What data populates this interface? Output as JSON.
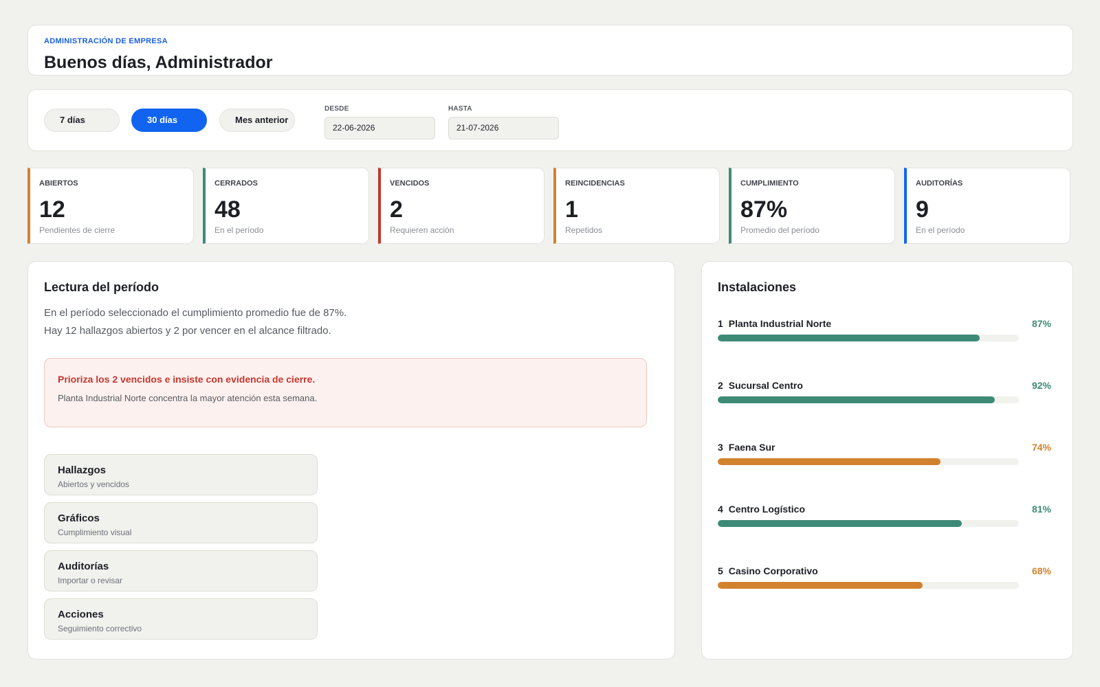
{
  "header": {
    "eyebrow": "ADMINISTRACIÓN DE EMPRESA",
    "title": "Buenos días, Administrador"
  },
  "filters": {
    "ranges": [
      {
        "label": "7 días",
        "active": false
      },
      {
        "label": "30 días",
        "active": true
      },
      {
        "label": "Mes anterior",
        "active": false
      }
    ],
    "from_label": "DESDE",
    "from_value": "22-06-2026",
    "to_label": "HASTA",
    "to_value": "21-07-2026"
  },
  "stats": [
    {
      "label": "ABIERTOS",
      "value": "12",
      "sub": "Pendientes de cierre",
      "color": "#d2822f"
    },
    {
      "label": "CERRADOS",
      "value": "48",
      "sub": "En el período",
      "color": "#3d8b76"
    },
    {
      "label": "VENCIDOS",
      "value": "2",
      "sub": "Requieren acción",
      "color": "#c4362f"
    },
    {
      "label": "REINCIDENCIAS",
      "value": "1",
      "sub": "Repetidos",
      "color": "#d2822f"
    },
    {
      "label": "CUMPLIMIENTO",
      "value": "87%",
      "sub": "Promedio del período",
      "color": "#3d8b76"
    },
    {
      "label": "AUDITORÍAS",
      "value": "9",
      "sub": "En el período",
      "color": "#1064f0"
    }
  ],
  "lectura": {
    "title": "Lectura del período",
    "line1": "En el período seleccionado el cumplimiento promedio fue de 87%.",
    "line2": "Hay 12 hallazgos abiertos y 2 por vencer en el alcance filtrado.",
    "alert_title": "Prioriza los 2 vencidos e insiste con evidencia de cierre.",
    "alert_body": "Planta Industrial Norte concentra la mayor atención esta semana.",
    "tiles": [
      {
        "title": "Hallazgos",
        "sub": "Abiertos y vencidos"
      },
      {
        "title": "Gráficos",
        "sub": "Cumplimiento visual"
      },
      {
        "title": "Auditorías",
        "sub": "Importar o revisar"
      },
      {
        "title": "Acciones",
        "sub": "Seguimiento correctivo"
      }
    ]
  },
  "instalaciones": {
    "title": "Instalaciones",
    "sites": [
      {
        "rank": "1",
        "name": "Planta Industrial Norte",
        "pct_label": "87%",
        "value": 0.87,
        "color": "#3d8b76"
      },
      {
        "rank": "2",
        "name": "Sucursal Centro",
        "pct_label": "92%",
        "value": 0.92,
        "color": "#3d8b76"
      },
      {
        "rank": "3",
        "name": "Faena Sur",
        "pct_label": "74%",
        "value": 0.74,
        "color": "#d2822f"
      },
      {
        "rank": "4",
        "name": "Centro Logístico",
        "pct_label": "81%",
        "value": 0.81,
        "color": "#3d8b76"
      },
      {
        "rank": "5",
        "name": "Casino Corporativo",
        "pct_label": "68%",
        "value": 0.68,
        "color": "#d2822f"
      }
    ]
  }
}
